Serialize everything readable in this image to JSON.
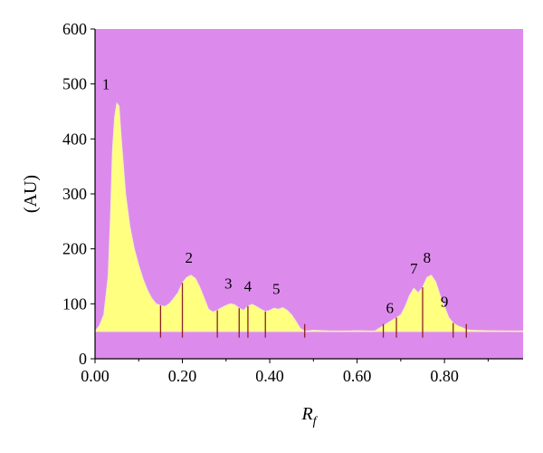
{
  "chart_data": {
    "type": "area",
    "xlabel": "R",
    "xlabel_subscript": "f",
    "ylabel": "(AU)",
    "xlim": [
      0.0,
      0.98
    ],
    "ylim": [
      0,
      600
    ],
    "baseline": 50,
    "x_ticks": [
      {
        "value": 0.0,
        "label": "0.00"
      },
      {
        "value": 0.2,
        "label": "0.20"
      },
      {
        "value": 0.4,
        "label": "0.40"
      },
      {
        "value": 0.6,
        "label": "0.60"
      },
      {
        "value": 0.8,
        "label": "0.80"
      }
    ],
    "y_ticks": [
      {
        "value": 0,
        "label": "0"
      },
      {
        "value": 100,
        "label": "100"
      },
      {
        "value": 200,
        "label": "200"
      },
      {
        "value": 300,
        "label": "300"
      },
      {
        "value": 400,
        "label": "400"
      },
      {
        "value": 500,
        "label": "500"
      },
      {
        "value": 600,
        "label": "600"
      }
    ],
    "background_color": "#dd8aed",
    "fill_color": "#ffff80",
    "line_color": "#8b2222",
    "series": [
      {
        "x": [
          0.0,
          0.01,
          0.02,
          0.03,
          0.035,
          0.04,
          0.045,
          0.05,
          0.055,
          0.06,
          0.07,
          0.08,
          0.09,
          0.1,
          0.11,
          0.12,
          0.13,
          0.14,
          0.15,
          0.16,
          0.17,
          0.18,
          0.19,
          0.2,
          0.21,
          0.22,
          0.23,
          0.24,
          0.25,
          0.26,
          0.27,
          0.28,
          0.29,
          0.3,
          0.31,
          0.32,
          0.33,
          0.34,
          0.35,
          0.36,
          0.37,
          0.38,
          0.39,
          0.4,
          0.41,
          0.42,
          0.43,
          0.44,
          0.45,
          0.46,
          0.47,
          0.48,
          0.5,
          0.55,
          0.6,
          0.64,
          0.65,
          0.66,
          0.67,
          0.68,
          0.69,
          0.7,
          0.71,
          0.72,
          0.73,
          0.74,
          0.75,
          0.76,
          0.77,
          0.78,
          0.79,
          0.8,
          0.81,
          0.82,
          0.83,
          0.84,
          0.85,
          0.86,
          0.9,
          0.98
        ],
        "y": [
          50,
          60,
          80,
          150,
          250,
          380,
          440,
          465,
          460,
          400,
          300,
          240,
          200,
          170,
          145,
          125,
          110,
          100,
          97,
          95,
          100,
          110,
          120,
          138,
          148,
          152,
          146,
          130,
          110,
          90,
          85,
          88,
          93,
          97,
          100,
          98,
          92,
          88,
          96,
          99,
          95,
          90,
          86,
          88,
          92,
          90,
          93,
          88,
          80,
          68,
          55,
          50,
          52,
          50,
          51,
          50,
          55,
          60,
          65,
          70,
          75,
          80,
          95,
          115,
          128,
          120,
          130,
          148,
          152,
          140,
          115,
          95,
          75,
          65,
          60,
          57,
          53,
          52,
          51,
          50
        ]
      }
    ],
    "peak_dividers": [
      0.15,
      0.2,
      0.28,
      0.33,
      0.35,
      0.39,
      0.48,
      0.66,
      0.69,
      0.75,
      0.82,
      0.85
    ],
    "peak_labels": [
      {
        "text": "1",
        "x": 0.025,
        "y": 490
      },
      {
        "text": "2",
        "x": 0.215,
        "y": 175
      },
      {
        "text": "3",
        "x": 0.305,
        "y": 128
      },
      {
        "text": "4",
        "x": 0.35,
        "y": 123
      },
      {
        "text": "5",
        "x": 0.415,
        "y": 118
      },
      {
        "text": "6",
        "x": 0.675,
        "y": 83
      },
      {
        "text": "7",
        "x": 0.73,
        "y": 155
      },
      {
        "text": "8",
        "x": 0.76,
        "y": 175
      },
      {
        "text": "9",
        "x": 0.8,
        "y": 95
      }
    ]
  }
}
